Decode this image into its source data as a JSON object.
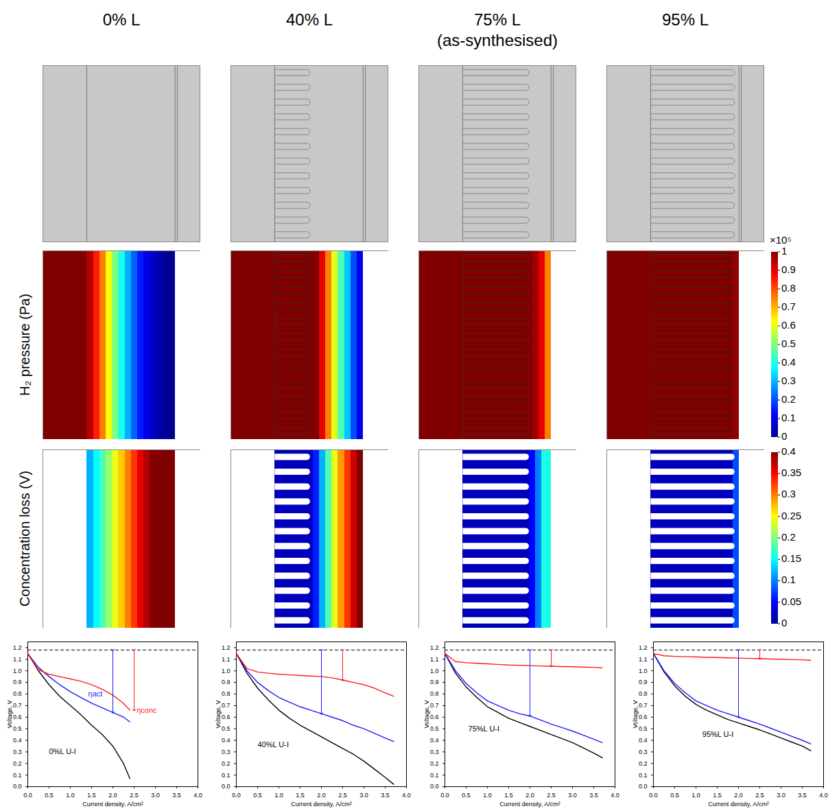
{
  "figure": {
    "row_labels": [
      "H₂ pressure (Pa)",
      "Concentration loss (V)"
    ],
    "colorbars": [
      {
        "multiplier_label": "×10⁵",
        "range": [
          0,
          100000
        ],
        "ticks": [
          0,
          {
            "value": 10000,
            "label": "0.1"
          },
          {
            "value": 20000,
            "label": "0.2"
          },
          {
            "value": 30000,
            "label": "0.3"
          },
          {
            "value": 40000,
            "label": "0.4"
          },
          {
            "value": 50000,
            "label": "0.5"
          },
          {
            "value": 60000,
            "label": "0.6"
          },
          {
            "value": 70000,
            "label": "0.7"
          },
          {
            "value": 80000,
            "label": "0.8"
          },
          {
            "value": 90000,
            "label": "0.9"
          },
          {
            "value": 100000,
            "label": "1"
          }
        ]
      },
      {
        "range": [
          0,
          0.4
        ],
        "ticks": [
          0,
          0.05,
          0.1,
          0.15,
          0.2,
          0.25,
          0.3,
          0.35,
          0.4
        ]
      }
    ],
    "columns": [
      {
        "title": "0% L",
        "length_percent": 0,
        "h2_pressure": {
          "x_edges": [
            0,
            0.28,
            0.32,
            0.36,
            0.4,
            0.44,
            0.48,
            0.52,
            0.56,
            0.6,
            0.64,
            0.68,
            0.72,
            0.76,
            0.8,
            0.84
          ],
          "values": [
            100000,
            95000,
            85000,
            75000,
            62000,
            50000,
            40000,
            30000,
            22000,
            15000,
            10000,
            6000,
            3000,
            1000,
            0
          ]
        },
        "concentration_loss": {
          "x_edges": [
            0.28,
            0.32,
            0.36,
            0.4,
            0.44,
            0.48,
            0.52,
            0.56,
            0.6,
            0.64,
            0.68,
            0.72,
            0.76,
            0.8,
            0.84
          ],
          "values": [
            0.12,
            0.15,
            0.18,
            0.21,
            0.24,
            0.27,
            0.3,
            0.33,
            0.36,
            0.38,
            0.4,
            0.4,
            0.4,
            0.4
          ]
        }
      },
      {
        "title": "40% L",
        "length_percent": 40,
        "h2_pressure": {
          "x_edges": [
            0,
            0.28,
            0.56,
            0.6,
            0.64,
            0.68,
            0.72,
            0.76,
            0.8,
            0.84
          ],
          "values": [
            100000,
            100000,
            90000,
            75000,
            60000,
            45000,
            32000,
            20000,
            10000
          ]
        },
        "concentration_loss": {
          "x_edges": [
            0.28,
            0.52,
            0.56,
            0.6,
            0.64,
            0.68,
            0.72,
            0.76,
            0.8,
            0.84
          ],
          "values": [
            0.02,
            0.06,
            0.12,
            0.18,
            0.24,
            0.29,
            0.33,
            0.37,
            0.4
          ]
        }
      },
      {
        "title": "75% L",
        "subtitle": "(as-synthesised)",
        "length_percent": 75,
        "h2_pressure": {
          "x_edges": [
            0,
            0.28,
            0.72,
            0.76,
            0.8,
            0.84
          ],
          "values": [
            100000,
            100000,
            97000,
            90000,
            75000
          ]
        },
        "concentration_loss": {
          "x_edges": [
            0.28,
            0.7,
            0.74,
            0.78,
            0.84
          ],
          "values": [
            0.02,
            0.05,
            0.1,
            0.16
          ]
        }
      },
      {
        "title": "95% L",
        "length_percent": 95,
        "h2_pressure": {
          "x_edges": [
            0,
            0.28,
            0.8,
            0.84
          ],
          "values": [
            100000,
            100000,
            98000
          ]
        },
        "concentration_loss": {
          "x_edges": [
            0.28,
            0.8,
            0.84
          ],
          "values": [
            0.02,
            0.08
          ]
        }
      }
    ]
  },
  "chart_data": [
    {
      "type": "line",
      "x_label": "Current density, A/cm²",
      "y_label": "Voltage, V",
      "xlim": [
        0,
        4
      ],
      "ylim": [
        0,
        1.25
      ],
      "xticks": [
        {
          "value": 0,
          "label": "0.0"
        },
        0.5,
        {
          "value": 1,
          "label": "1.0"
        },
        1.5,
        {
          "value": 2,
          "label": "2.0"
        },
        2.5,
        {
          "value": 3,
          "label": "3.0"
        },
        3.5,
        {
          "value": 4,
          "label": "4.0"
        }
      ],
      "yticks": [
        {
          "value": 0,
          "label": "0.0"
        },
        0.1,
        0.2,
        0.3,
        0.4,
        0.5,
        0.6,
        0.7,
        0.8,
        0.9,
        {
          "value": 1,
          "label": "1.0"
        },
        1.1,
        1.2
      ],
      "x": [
        0,
        0.25,
        0.5,
        0.75,
        1,
        1.25,
        1.5,
        1.75,
        2,
        2.25,
        2.4
      ],
      "series": [
        {
          "color": "#000000",
          "values": [
            1.15,
            1.0,
            0.88,
            0.78,
            0.7,
            0.62,
            0.53,
            0.45,
            0.35,
            0.2,
            0.07
          ]
        },
        {
          "color": "#1a1aff",
          "values": [
            1.15,
            1.03,
            0.95,
            0.88,
            0.82,
            0.77,
            0.72,
            0.68,
            0.64,
            0.6,
            0.56
          ]
        },
        {
          "color": "#ff1a1a",
          "values": [
            1.15,
            1.01,
            0.97,
            0.95,
            0.93,
            0.91,
            0.88,
            0.84,
            0.79,
            0.72,
            0.66
          ]
        }
      ],
      "reference": {
        "y": 1.18,
        "line_style": "dashed"
      },
      "arrows": [
        {
          "x": 2.0,
          "y1": 1.18,
          "y2": 0.64,
          "color": "#1a1aff"
        },
        {
          "x": 2.5,
          "y1": 1.18,
          "y2": 0.66,
          "color": "#ff1a1a"
        }
      ],
      "annotations": [
        {
          "text": "ηact",
          "x": 1.42,
          "y": 0.8,
          "color": "#1a1aff"
        },
        {
          "text": "ηconc",
          "x": 2.56,
          "y": 0.66,
          "color": "#ff1a1a"
        },
        {
          "text": "0%L U-I",
          "x": 0.5,
          "y": 0.3,
          "color": "#000000"
        }
      ]
    },
    {
      "type": "line",
      "x_label": "Current density, A/cm²",
      "y_label": "Voltage, V",
      "xlim": [
        0,
        4
      ],
      "ylim": [
        0,
        1.25
      ],
      "xticks": [
        {
          "value": 0,
          "label": "0.0"
        },
        0.5,
        {
          "value": 1,
          "label": "1.0"
        },
        1.5,
        {
          "value": 2,
          "label": "2.0"
        },
        2.5,
        {
          "value": 3,
          "label": "3.0"
        },
        3.5,
        {
          "value": 4,
          "label": "4.0"
        }
      ],
      "yticks": [
        {
          "value": 0,
          "label": "0.0"
        },
        0.1,
        0.2,
        0.3,
        0.4,
        0.5,
        0.6,
        0.7,
        0.8,
        0.9,
        {
          "value": 1,
          "label": "1.0"
        },
        1.1,
        1.2
      ],
      "x": [
        0,
        0.25,
        0.5,
        0.75,
        1,
        1.25,
        1.5,
        1.75,
        2,
        2.25,
        2.5,
        2.75,
        3,
        3.25,
        3.5,
        3.7
      ],
      "series": [
        {
          "color": "#000000",
          "values": [
            1.15,
            0.98,
            0.85,
            0.75,
            0.66,
            0.59,
            0.53,
            0.48,
            0.43,
            0.38,
            0.33,
            0.28,
            0.22,
            0.15,
            0.08,
            0.02
          ]
        },
        {
          "color": "#1a1aff",
          "values": [
            1.15,
            1.0,
            0.9,
            0.83,
            0.77,
            0.73,
            0.69,
            0.66,
            0.63,
            0.6,
            0.57,
            0.53,
            0.5,
            0.46,
            0.42,
            0.39
          ]
        },
        {
          "color": "#ff1a1a",
          "values": [
            1.15,
            1.02,
            0.99,
            0.98,
            0.97,
            0.965,
            0.96,
            0.955,
            0.95,
            0.94,
            0.92,
            0.9,
            0.88,
            0.85,
            0.81,
            0.78
          ]
        }
      ],
      "reference": {
        "y": 1.18,
        "line_style": "dashed"
      },
      "arrows": [
        {
          "x": 2.0,
          "y1": 1.18,
          "y2": 0.63,
          "color": "#1a1aff"
        },
        {
          "x": 2.5,
          "y1": 1.18,
          "y2": 0.92,
          "color": "#ff1a1a"
        }
      ],
      "annotations": [
        {
          "text": "40%L U-I",
          "x": 0.5,
          "y": 0.36,
          "color": "#000000"
        }
      ]
    },
    {
      "type": "line",
      "x_label": "Current density, A/cm²",
      "y_label": "Voltage, V",
      "xlim": [
        0,
        4
      ],
      "ylim": [
        0,
        1.25
      ],
      "xticks": [
        {
          "value": 0,
          "label": "0.0"
        },
        0.5,
        {
          "value": 1,
          "label": "1.0"
        },
        1.5,
        {
          "value": 2,
          "label": "2.0"
        },
        2.5,
        {
          "value": 3,
          "label": "3.0"
        },
        3.5,
        {
          "value": 4,
          "label": "4.0"
        }
      ],
      "yticks": [
        {
          "value": 0,
          "label": "0.0"
        },
        0.1,
        0.2,
        0.3,
        0.4,
        0.5,
        0.6,
        0.7,
        0.8,
        0.9,
        {
          "value": 1,
          "label": "1.0"
        },
        1.1,
        1.2
      ],
      "x": [
        0,
        0.25,
        0.5,
        0.75,
        1,
        1.25,
        1.5,
        1.75,
        2,
        2.25,
        2.5,
        2.75,
        3,
        3.25,
        3.5,
        3.7
      ],
      "series": [
        {
          "color": "#000000",
          "values": [
            1.15,
            0.98,
            0.86,
            0.77,
            0.69,
            0.64,
            0.59,
            0.555,
            0.52,
            0.485,
            0.45,
            0.415,
            0.38,
            0.335,
            0.29,
            0.25
          ]
        },
        {
          "color": "#1a1aff",
          "values": [
            1.15,
            1.0,
            0.89,
            0.81,
            0.74,
            0.7,
            0.66,
            0.63,
            0.61,
            0.575,
            0.54,
            0.51,
            0.48,
            0.445,
            0.41,
            0.38
          ]
        },
        {
          "color": "#ff1a1a",
          "values": [
            1.15,
            1.08,
            1.07,
            1.065,
            1.06,
            1.055,
            1.05,
            1.048,
            1.045,
            1.042,
            1.04,
            1.037,
            1.035,
            1.032,
            1.03,
            1.025
          ]
        }
      ],
      "reference": {
        "y": 1.18,
        "line_style": "dashed"
      },
      "arrows": [
        {
          "x": 2.0,
          "y1": 1.18,
          "y2": 0.61,
          "color": "#1a1aff"
        },
        {
          "x": 2.5,
          "y1": 1.18,
          "y2": 1.04,
          "color": "#ff1a1a"
        }
      ],
      "annotations": [
        {
          "text": "75%L U-I",
          "x": 0.55,
          "y": 0.5,
          "color": "#000000"
        }
      ]
    },
    {
      "type": "line",
      "x_label": "Current density, A/cm²",
      "y_label": "Voltage, V",
      "xlim": [
        0,
        4
      ],
      "ylim": [
        0,
        1.25
      ],
      "xticks": [
        {
          "value": 0,
          "label": "0.0"
        },
        0.5,
        {
          "value": 1,
          "label": "1.0"
        },
        1.5,
        {
          "value": 2,
          "label": "2.0"
        },
        2.5,
        {
          "value": 3,
          "label": "3.0"
        },
        3.5,
        {
          "value": 4,
          "label": "4.0"
        }
      ],
      "yticks": [
        {
          "value": 0,
          "label": "0.0"
        },
        0.1,
        0.2,
        0.3,
        0.4,
        0.5,
        0.6,
        0.7,
        0.8,
        0.9,
        {
          "value": 1,
          "label": "1.0"
        },
        1.1,
        1.2
      ],
      "x": [
        0,
        0.25,
        0.5,
        0.75,
        1,
        1.25,
        1.5,
        1.75,
        2,
        2.25,
        2.5,
        2.75,
        3,
        3.25,
        3.5,
        3.7
      ],
      "series": [
        {
          "color": "#000000",
          "values": [
            1.15,
            0.99,
            0.87,
            0.78,
            0.71,
            0.66,
            0.62,
            0.58,
            0.55,
            0.52,
            0.49,
            0.455,
            0.42,
            0.385,
            0.35,
            0.31
          ]
        },
        {
          "color": "#1a1aff",
          "values": [
            1.15,
            1.0,
            0.89,
            0.81,
            0.74,
            0.7,
            0.66,
            0.63,
            0.6,
            0.57,
            0.54,
            0.505,
            0.47,
            0.435,
            0.4,
            0.37
          ]
        },
        {
          "color": "#ff1a1a",
          "values": [
            1.15,
            1.13,
            1.125,
            1.122,
            1.12,
            1.117,
            1.115,
            1.112,
            1.11,
            1.107,
            1.105,
            1.102,
            1.1,
            1.097,
            1.095,
            1.09
          ]
        }
      ],
      "reference": {
        "y": 1.18,
        "line_style": "dashed"
      },
      "arrows": [
        {
          "x": 2.0,
          "y1": 1.18,
          "y2": 0.6,
          "color": "#1a1aff"
        },
        {
          "x": 2.5,
          "y1": 1.18,
          "y2": 1.105,
          "color": "#ff1a1a"
        }
      ],
      "annotations": [
        {
          "text": "95%L U-I",
          "x": 1.15,
          "y": 0.45,
          "color": "#000000"
        }
      ]
    }
  ]
}
